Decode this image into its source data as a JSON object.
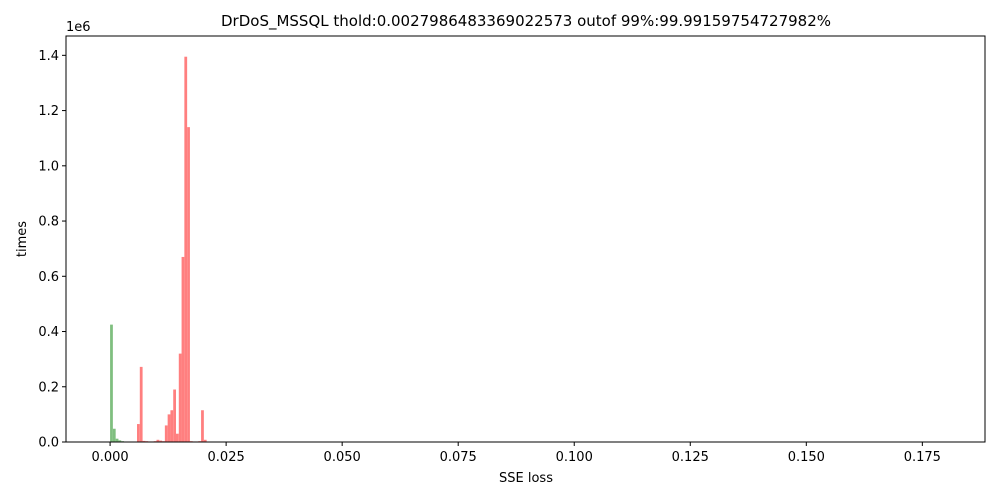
{
  "chart_data": {
    "type": "bar",
    "title": "DrDoS_MSSQL thold:0.0027986483369022573 outof 99%:99.99159754727982%",
    "xlabel": "SSE loss",
    "ylabel": "times",
    "y_offset_label": "1e6",
    "xlim": [
      -0.0095,
      0.1885
    ],
    "ylim": [
      0,
      1470000
    ],
    "x_ticks": [
      {
        "value": 0.0,
        "label": "0.000"
      },
      {
        "value": 0.025,
        "label": "0.025"
      },
      {
        "value": 0.05,
        "label": "0.050"
      },
      {
        "value": 0.075,
        "label": "0.075"
      },
      {
        "value": 0.1,
        "label": "0.100"
      },
      {
        "value": 0.125,
        "label": "0.125"
      },
      {
        "value": 0.15,
        "label": "0.150"
      },
      {
        "value": 0.175,
        "label": "0.175"
      }
    ],
    "y_ticks": [
      {
        "value": 0,
        "label": "0.0"
      },
      {
        "value": 200000,
        "label": "0.2"
      },
      {
        "value": 400000,
        "label": "0.4"
      },
      {
        "value": 600000,
        "label": "0.6"
      },
      {
        "value": 800000,
        "label": "0.8"
      },
      {
        "value": 1000000,
        "label": "1.0"
      },
      {
        "value": 1200000,
        "label": "1.2"
      },
      {
        "value": 1400000,
        "label": "1.4"
      }
    ],
    "series": [
      {
        "color": "#7fbf7f",
        "bins": [
          {
            "x0": 0.0,
            "x1": 0.0006,
            "value": 425000
          },
          {
            "x0": 0.0006,
            "x1": 0.0012,
            "value": 48000
          },
          {
            "x0": 0.0012,
            "x1": 0.0018,
            "value": 12000
          },
          {
            "x0": 0.0018,
            "x1": 0.0024,
            "value": 6000
          },
          {
            "x0": 0.0024,
            "x1": 0.003,
            "value": 3000
          }
        ]
      },
      {
        "color": "#ff7f7f",
        "bins": [
          {
            "x0": 0.0058,
            "x1": 0.0064,
            "value": 65000
          },
          {
            "x0": 0.0064,
            "x1": 0.007,
            "value": 272000
          },
          {
            "x0": 0.007,
            "x1": 0.0076,
            "value": 4000
          },
          {
            "x0": 0.0076,
            "x1": 0.0082,
            "value": 3000
          },
          {
            "x0": 0.0082,
            "x1": 0.0088,
            "value": 2000
          },
          {
            "x0": 0.0088,
            "x1": 0.0094,
            "value": 2000
          },
          {
            "x0": 0.0094,
            "x1": 0.01,
            "value": 3000
          },
          {
            "x0": 0.01,
            "x1": 0.0106,
            "value": 8000
          },
          {
            "x0": 0.0106,
            "x1": 0.0112,
            "value": 5000
          },
          {
            "x0": 0.0112,
            "x1": 0.0118,
            "value": 3000
          },
          {
            "x0": 0.0118,
            "x1": 0.0124,
            "value": 60000
          },
          {
            "x0": 0.0124,
            "x1": 0.013,
            "value": 100000
          },
          {
            "x0": 0.013,
            "x1": 0.0136,
            "value": 115000
          },
          {
            "x0": 0.0136,
            "x1": 0.0142,
            "value": 190000
          },
          {
            "x0": 0.0142,
            "x1": 0.0148,
            "value": 30000
          },
          {
            "x0": 0.0148,
            "x1": 0.0154,
            "value": 320000
          },
          {
            "x0": 0.0154,
            "x1": 0.016,
            "value": 670000
          },
          {
            "x0": 0.016,
            "x1": 0.0166,
            "value": 1395000
          },
          {
            "x0": 0.0166,
            "x1": 0.0172,
            "value": 1140000
          },
          {
            "x0": 0.0172,
            "x1": 0.0178,
            "value": 3000
          },
          {
            "x0": 0.0178,
            "x1": 0.0184,
            "value": 2000
          },
          {
            "x0": 0.0184,
            "x1": 0.019,
            "value": 2000
          },
          {
            "x0": 0.019,
            "x1": 0.0196,
            "value": 3000
          },
          {
            "x0": 0.0196,
            "x1": 0.0202,
            "value": 115000
          },
          {
            "x0": 0.0202,
            "x1": 0.0208,
            "value": 8000
          }
        ]
      }
    ]
  }
}
